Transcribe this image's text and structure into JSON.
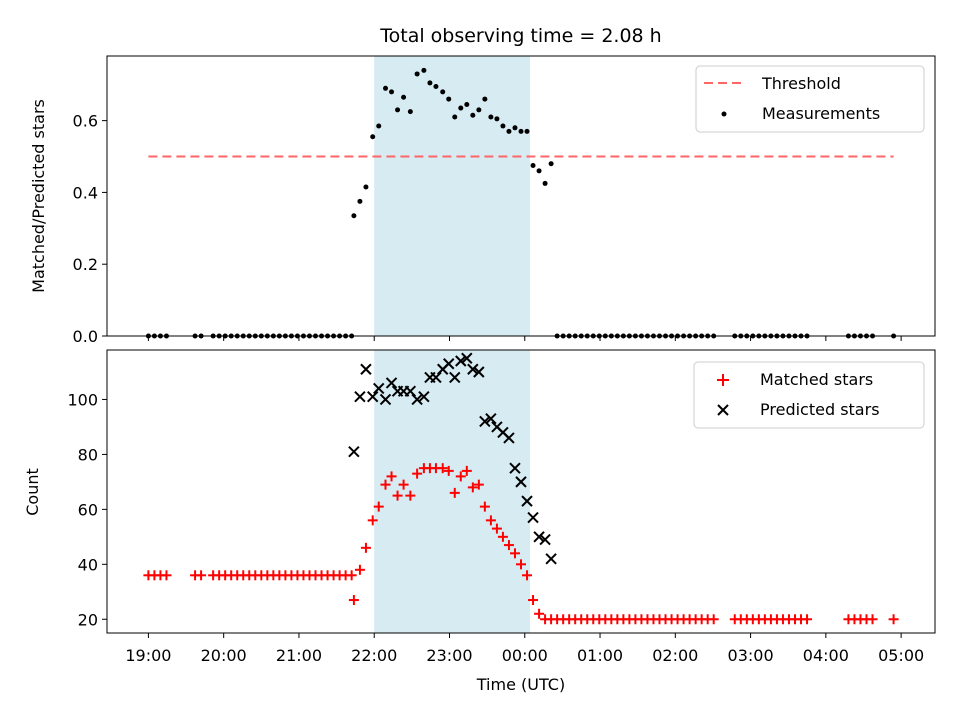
{
  "chart_data": [
    {
      "type": "scatter",
      "title": "Total observing time = 2.08 h",
      "xlabel": "",
      "ylabel": "Matched/Predicted stars",
      "xlim": [
        -0.55,
        10.45
      ],
      "ylim": [
        0,
        0.78
      ],
      "yticks": [
        0.0,
        0.2,
        0.4,
        0.6
      ],
      "ytick_labels": [
        "0.0",
        "0.2",
        "0.4",
        "0.6"
      ],
      "shaded_interval": {
        "x0": 3.0,
        "x1": 5.07,
        "color": "#add8e6"
      },
      "threshold": {
        "name": "Threshold",
        "y": 0.5,
        "x0": 0.0,
        "x1": 9.9,
        "color": "#ff6666"
      },
      "series": [
        {
          "name": "Measurements",
          "color": "#000000",
          "x": [
            0.0,
            0.08,
            0.16,
            0.24,
            0.62,
            0.7,
            0.86,
            0.94,
            1.02,
            1.1,
            1.18,
            1.26,
            1.34,
            1.42,
            1.5,
            1.58,
            1.66,
            1.74,
            1.82,
            1.9,
            1.98,
            2.06,
            2.14,
            2.22,
            2.3,
            2.38,
            2.46,
            2.54,
            2.62,
            2.7,
            2.73,
            2.81,
            2.89,
            2.98,
            3.06,
            3.15,
            3.23,
            3.31,
            3.39,
            3.48,
            3.57,
            3.66,
            3.74,
            3.82,
            3.91,
            3.99,
            4.07,
            4.15,
            4.23,
            4.31,
            4.39,
            4.47,
            4.55,
            4.63,
            4.71,
            4.79,
            4.87,
            4.95,
            5.03,
            5.11,
            5.19,
            5.27,
            5.35,
            5.43,
            5.51,
            5.59,
            5.67,
            5.75,
            5.83,
            5.91,
            5.99,
            6.07,
            6.15,
            6.23,
            6.31,
            6.39,
            6.47,
            6.55,
            6.63,
            6.71,
            6.79,
            6.87,
            6.95,
            7.03,
            7.11,
            7.19,
            7.27,
            7.35,
            7.43,
            7.51,
            7.79,
            7.87,
            7.95,
            8.03,
            8.11,
            8.19,
            8.27,
            8.35,
            8.43,
            8.51,
            8.59,
            8.67,
            8.75,
            9.3,
            9.38,
            9.46,
            9.54,
            9.62,
            9.9
          ],
          "y": [
            0,
            0,
            0,
            0,
            0,
            0,
            0,
            0,
            0,
            0,
            0,
            0,
            0,
            0,
            0,
            0,
            0,
            0,
            0,
            0,
            0,
            0,
            0,
            0,
            0,
            0,
            0,
            0,
            0,
            0,
            0.335,
            0.375,
            0.415,
            0.555,
            0.585,
            0.69,
            0.68,
            0.63,
            0.665,
            0.625,
            0.73,
            0.74,
            0.705,
            0.695,
            0.68,
            0.66,
            0.61,
            0.635,
            0.645,
            0.615,
            0.63,
            0.66,
            0.61,
            0.605,
            0.585,
            0.57,
            0.58,
            0.57,
            0.57,
            0.475,
            0.46,
            0.425,
            0.48,
            0,
            0,
            0,
            0,
            0,
            0,
            0,
            0,
            0,
            0,
            0,
            0,
            0,
            0,
            0,
            0,
            0,
            0,
            0,
            0,
            0,
            0,
            0,
            0,
            0,
            0,
            0,
            0,
            0,
            0,
            0,
            0,
            0,
            0,
            0,
            0,
            0,
            0,
            0,
            0,
            0,
            0,
            0,
            0,
            0,
            0
          ]
        }
      ],
      "legend": {
        "placement": "top-right",
        "entries": [
          "Threshold",
          "Measurements"
        ]
      }
    },
    {
      "type": "scatter",
      "title": "",
      "xlabel": "Time (UTC)",
      "ylabel": "Count",
      "xlim": [
        -0.55,
        10.45
      ],
      "ylim": [
        15,
        118
      ],
      "yticks": [
        20,
        40,
        60,
        80,
        100
      ],
      "ytick_labels": [
        "20",
        "40",
        "60",
        "80",
        "100"
      ],
      "xticks": [
        0,
        1,
        2,
        3,
        4,
        5,
        6,
        7,
        8,
        9,
        10
      ],
      "xtick_labels": [
        "19:00",
        "20:00",
        "21:00",
        "22:00",
        "23:00",
        "00:00",
        "01:00",
        "02:00",
        "03:00",
        "04:00",
        "05:00"
      ],
      "shaded_interval": {
        "x0": 3.0,
        "x1": 5.07,
        "color": "#add8e6"
      },
      "series": [
        {
          "name": "Matched stars",
          "color": "#ff0000",
          "marker": "+",
          "x": [
            0.0,
            0.08,
            0.16,
            0.24,
            0.62,
            0.7,
            0.86,
            0.94,
            1.02,
            1.1,
            1.18,
            1.26,
            1.34,
            1.42,
            1.5,
            1.58,
            1.66,
            1.74,
            1.82,
            1.9,
            1.98,
            2.06,
            2.14,
            2.22,
            2.3,
            2.38,
            2.46,
            2.54,
            2.62,
            2.7,
            2.73,
            2.81,
            2.89,
            2.98,
            3.06,
            3.15,
            3.23,
            3.31,
            3.39,
            3.48,
            3.57,
            3.66,
            3.74,
            3.82,
            3.91,
            3.99,
            4.07,
            4.15,
            4.23,
            4.31,
            4.39,
            4.47,
            4.55,
            4.63,
            4.71,
            4.79,
            4.87,
            4.95,
            5.03,
            5.11,
            5.19,
            5.27,
            5.35,
            5.43,
            5.51,
            5.59,
            5.67,
            5.75,
            5.83,
            5.91,
            5.99,
            6.07,
            6.15,
            6.23,
            6.31,
            6.39,
            6.47,
            6.55,
            6.63,
            6.71,
            6.79,
            6.87,
            6.95,
            7.03,
            7.11,
            7.19,
            7.27,
            7.35,
            7.43,
            7.51,
            7.79,
            7.87,
            7.95,
            8.03,
            8.11,
            8.19,
            8.27,
            8.35,
            8.43,
            8.51,
            8.59,
            8.67,
            8.75,
            9.3,
            9.38,
            9.46,
            9.54,
            9.62,
            9.9
          ],
          "y": [
            36,
            36,
            36,
            36,
            36,
            36,
            36,
            36,
            36,
            36,
            36,
            36,
            36,
            36,
            36,
            36,
            36,
            36,
            36,
            36,
            36,
            36,
            36,
            36,
            36,
            36,
            36,
            36,
            36,
            36,
            27,
            38,
            46,
            56,
            61,
            69,
            72,
            65,
            69,
            65,
            73,
            75,
            75,
            75,
            75,
            74,
            66,
            72,
            74,
            68,
            69,
            61,
            56,
            53,
            50,
            47,
            44,
            40,
            36,
            27,
            22,
            20,
            20,
            20,
            20,
            20,
            20,
            20,
            20,
            20,
            20,
            20,
            20,
            20,
            20,
            20,
            20,
            20,
            20,
            20,
            20,
            20,
            20,
            20,
            20,
            20,
            20,
            20,
            20,
            20,
            20,
            20,
            20,
            20,
            20,
            20,
            20,
            20,
            20,
            20,
            20,
            20,
            20,
            20,
            20,
            20,
            20,
            20,
            20
          ]
        },
        {
          "name": "Predicted stars",
          "color": "#000000",
          "marker": "x",
          "x": [
            2.73,
            2.81,
            2.89,
            2.98,
            3.06,
            3.15,
            3.23,
            3.31,
            3.39,
            3.48,
            3.57,
            3.66,
            3.74,
            3.82,
            3.91,
            3.99,
            4.07,
            4.15,
            4.23,
            4.31,
            4.39,
            4.47,
            4.55,
            4.63,
            4.71,
            4.79,
            4.87,
            4.95,
            5.03,
            5.11,
            5.19,
            5.27,
            5.35
          ],
          "y": [
            81,
            101,
            111,
            101,
            104,
            100,
            106,
            103,
            103,
            103,
            100,
            101,
            108,
            108,
            111,
            113,
            108,
            114,
            115,
            111,
            110,
            92,
            93,
            90,
            88,
            86,
            75,
            70,
            63,
            57,
            50,
            49,
            42
          ]
        }
      ],
      "legend": {
        "placement": "top-right",
        "entries": [
          "Matched stars",
          "Predicted stars"
        ]
      }
    }
  ]
}
